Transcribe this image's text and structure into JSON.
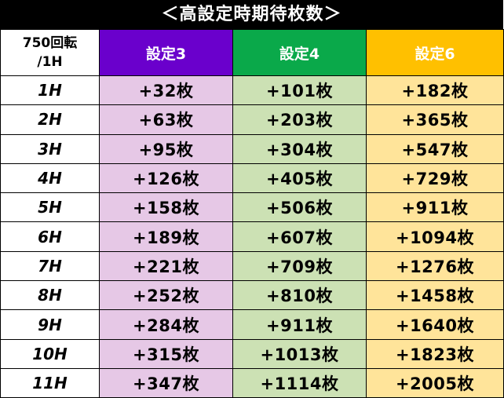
{
  "title": "＜高設定時期待枚数＞",
  "header": {
    "corner_line1": "750回転",
    "corner_line2": "/1H",
    "setting3": "設定3",
    "setting4": "設定4",
    "setting6": "設定6"
  },
  "colors": {
    "setting3": "#6a00cc",
    "setting4": "#0aa94a",
    "setting6": "#ffc000",
    "setting3_cell": "#e6c8e6",
    "setting4_cell": "#cce1b4",
    "setting6_cell": "#ffe49a"
  },
  "rows": [
    {
      "hours": "1H",
      "s3": "+32枚",
      "s4": "+101枚",
      "s6": "+182枚"
    },
    {
      "hours": "2H",
      "s3": "+63枚",
      "s4": "+203枚",
      "s6": "+365枚"
    },
    {
      "hours": "3H",
      "s3": "+95枚",
      "s4": "+304枚",
      "s6": "+547枚"
    },
    {
      "hours": "4H",
      "s3": "+126枚",
      "s4": "+405枚",
      "s6": "+729枚"
    },
    {
      "hours": "5H",
      "s3": "+158枚",
      "s4": "+506枚",
      "s6": "+911枚"
    },
    {
      "hours": "6H",
      "s3": "+189枚",
      "s4": "+607枚",
      "s6": "+1094枚"
    },
    {
      "hours": "7H",
      "s3": "+221枚",
      "s4": "+709枚",
      "s6": "+1276枚"
    },
    {
      "hours": "8H",
      "s3": "+252枚",
      "s4": "+810枚",
      "s6": "+1458枚"
    },
    {
      "hours": "9H",
      "s3": "+284枚",
      "s4": "+911枚",
      "s6": "+1640枚"
    },
    {
      "hours": "10H",
      "s3": "+315枚",
      "s4": "+1013枚",
      "s6": "+1823枚"
    },
    {
      "hours": "11H",
      "s3": "+347枚",
      "s4": "+1114枚",
      "s6": "+2005枚"
    }
  ]
}
